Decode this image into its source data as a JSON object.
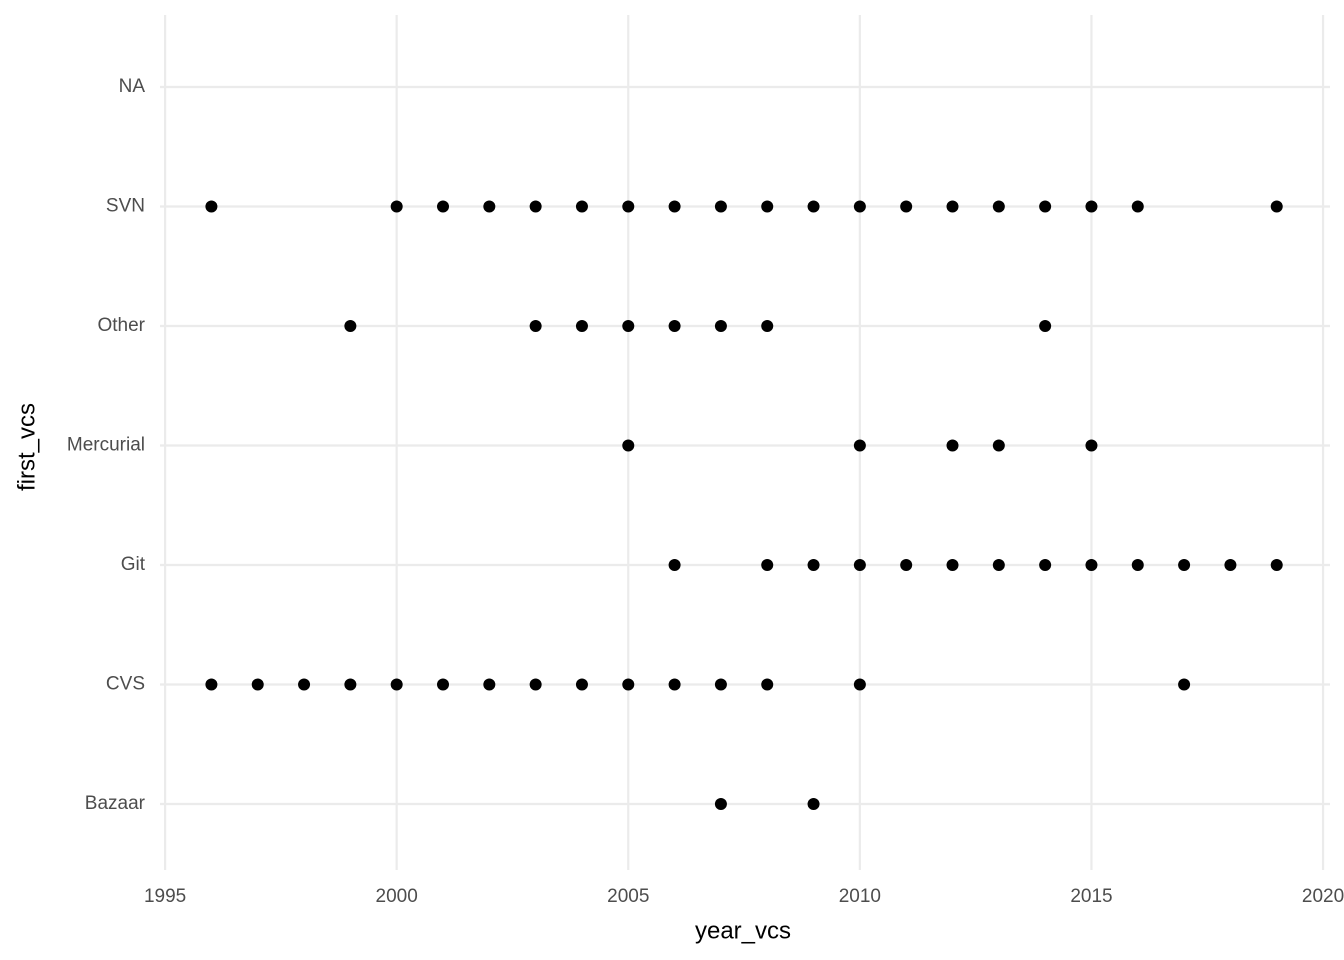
{
  "chart_data": {
    "type": "scatter",
    "xlabel": "year_vcs",
    "ylabel": "first_vcs",
    "categories": [
      "Bazaar",
      "CVS",
      "Git",
      "Mercurial",
      "Other",
      "SVN",
      "NA"
    ],
    "values": [
      [
        2007,
        2009
      ],
      [
        1996,
        1997,
        1998,
        1999,
        2000,
        2001,
        2002,
        2003,
        2004,
        2005,
        2006,
        2007,
        2008,
        2010,
        2017
      ],
      [
        2006,
        2008,
        2009,
        2010,
        2011,
        2012,
        2013,
        2014,
        2015,
        2016,
        2017,
        2018,
        2019
      ],
      [
        2005,
        2010,
        2012,
        2013,
        2015
      ],
      [
        1999,
        2003,
        2004,
        2005,
        2006,
        2007,
        2008,
        2014
      ],
      [
        1996,
        2000,
        2001,
        2002,
        2003,
        2004,
        2005,
        2006,
        2007,
        2008,
        2009,
        2010,
        2011,
        2012,
        2013,
        2014,
        2015,
        2016,
        2019
      ],
      []
    ],
    "color": "#000000",
    "xlim": [
      1994.89,
      2020.15
    ],
    "xticks": [
      1995,
      2000,
      2005,
      2010,
      2015,
      2020
    ],
    "grid": true
  }
}
